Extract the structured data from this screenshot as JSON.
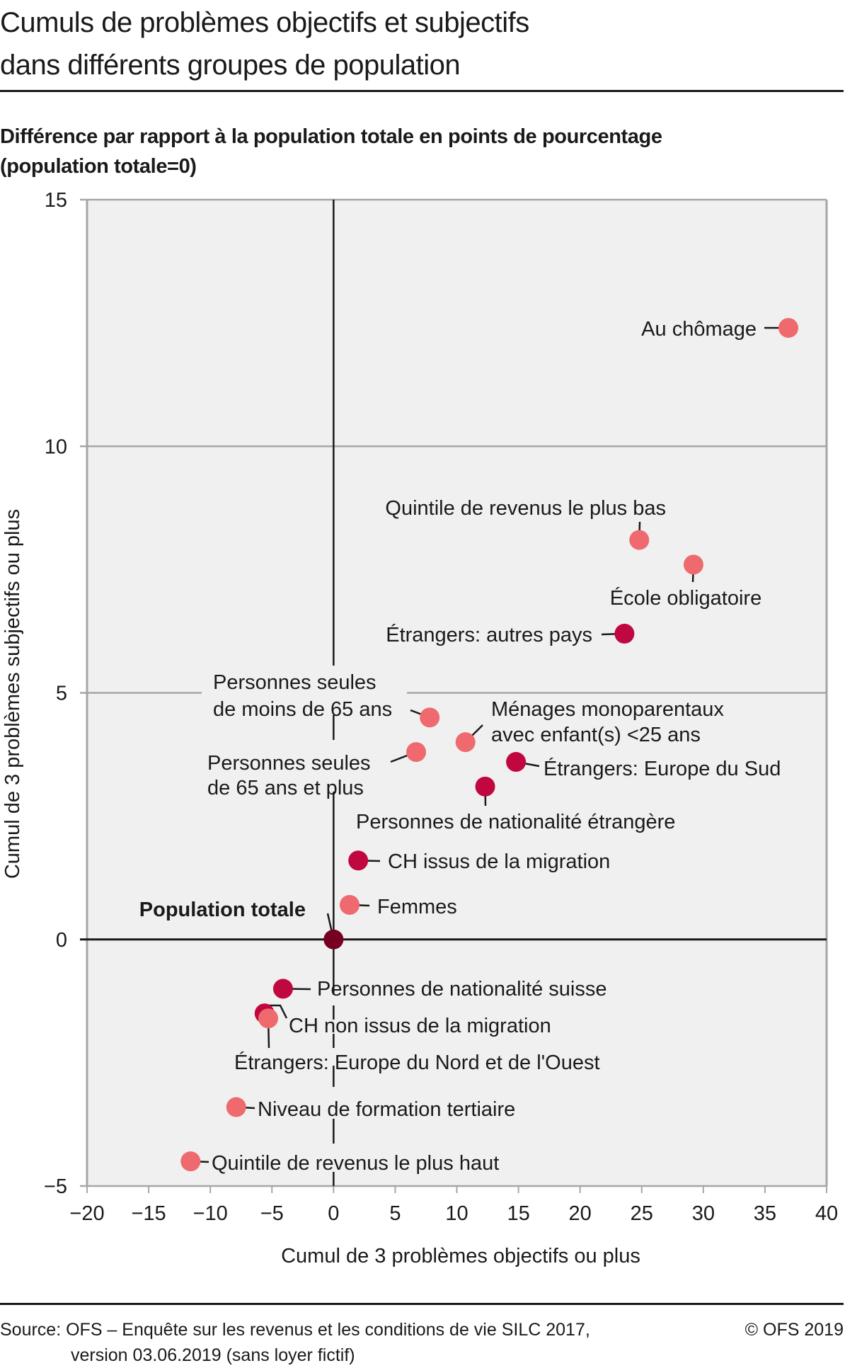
{
  "header": {
    "title_line1": "Cumuls de problèmes objectifs et subjectifs",
    "title_line2": "dans différents groupes de population",
    "subtitle_line1": "Différence par rapport à la population totale en points de pourcentage",
    "subtitle_line2": "(population totale=0)"
  },
  "footer": {
    "source_line1": "Source: OFS – Enquête sur les revenus et les conditions de vie SILC 2017,",
    "source_line2": "version 03.06.2019 (sans loyer fictif)",
    "copyright": "© OFS 2019"
  },
  "colors": {
    "light": "#ee6a6e",
    "dark": "#c0073f",
    "total": "#75001f",
    "plot_bg": "#f0f0f0",
    "grid": "#a6a6a6",
    "zero_axis": "#1a1a1a"
  },
  "chart_data": {
    "type": "scatter",
    "title": "Cumuls de problèmes objectifs et subjectifs dans différents groupes de population",
    "subtitle": "Différence par rapport à la population totale en points de pourcentage (population totale=0)",
    "xlabel": "Cumul de 3 problèmes objectifs ou plus",
    "ylabel": "Cumul de 3 problèmes subjectifs ou plus",
    "xlim": [
      -20,
      40
    ],
    "ylim": [
      -5,
      15
    ],
    "xticks": [
      -20,
      -15,
      -10,
      -5,
      0,
      5,
      10,
      15,
      20,
      25,
      30,
      35,
      40
    ],
    "yticks": [
      -5,
      0,
      5,
      10,
      15
    ],
    "xtick_labels": [
      "−20",
      "−15",
      "−10",
      "−5",
      "0",
      "5",
      "10",
      "15",
      "20",
      "25",
      "30",
      "35",
      "40"
    ],
    "ytick_labels": [
      "−5",
      "0",
      "5",
      "10",
      "15"
    ],
    "grid": "horizontal",
    "points": [
      {
        "label": "Au chômage",
        "x": 36.9,
        "y": 12.4,
        "color": "light"
      },
      {
        "label": "Quintile de revenus le plus bas",
        "x": 24.8,
        "y": 8.1,
        "color": "light"
      },
      {
        "label": "École obligatoire",
        "x": 29.2,
        "y": 7.6,
        "color": "light"
      },
      {
        "label": "Étrangers: autres pays",
        "x": 23.6,
        "y": 6.2,
        "color": "dark"
      },
      {
        "label": "Personnes seules de moins de 65 ans",
        "x": 7.8,
        "y": 4.5,
        "color": "light"
      },
      {
        "label": "Ménages monoparentaux avec enfant(s) <25 ans",
        "x": 10.7,
        "y": 4.0,
        "color": "light"
      },
      {
        "label": "Personnes seules de 65 ans et plus",
        "x": 6.7,
        "y": 3.8,
        "color": "light"
      },
      {
        "label": "Étrangers: Europe du Sud",
        "x": 14.8,
        "y": 3.6,
        "color": "dark"
      },
      {
        "label": "Personnes de nationalité étrangère",
        "x": 12.3,
        "y": 3.1,
        "color": "dark"
      },
      {
        "label": "CH issus de la migration",
        "x": 2.0,
        "y": 1.6,
        "color": "dark"
      },
      {
        "label": "Femmes",
        "x": 1.3,
        "y": 0.7,
        "color": "light"
      },
      {
        "label": "Population totale",
        "x": 0,
        "y": 0,
        "color": "total"
      },
      {
        "label": "Personnes de nationalité suisse",
        "x": -4.1,
        "y": -1.0,
        "color": "dark"
      },
      {
        "label": "CH non issus de la migration",
        "x": -5.6,
        "y": -1.5,
        "color": "dark"
      },
      {
        "label": "Étrangers: Europe du Nord et de l'Ouest",
        "x": -5.3,
        "y": -1.6,
        "color": "light"
      },
      {
        "label": "Niveau de formation tertiaire",
        "x": -7.9,
        "y": -3.4,
        "color": "light"
      },
      {
        "label": "Quintile de revenus le plus haut",
        "x": -11.6,
        "y": -4.5,
        "color": "light"
      }
    ]
  }
}
